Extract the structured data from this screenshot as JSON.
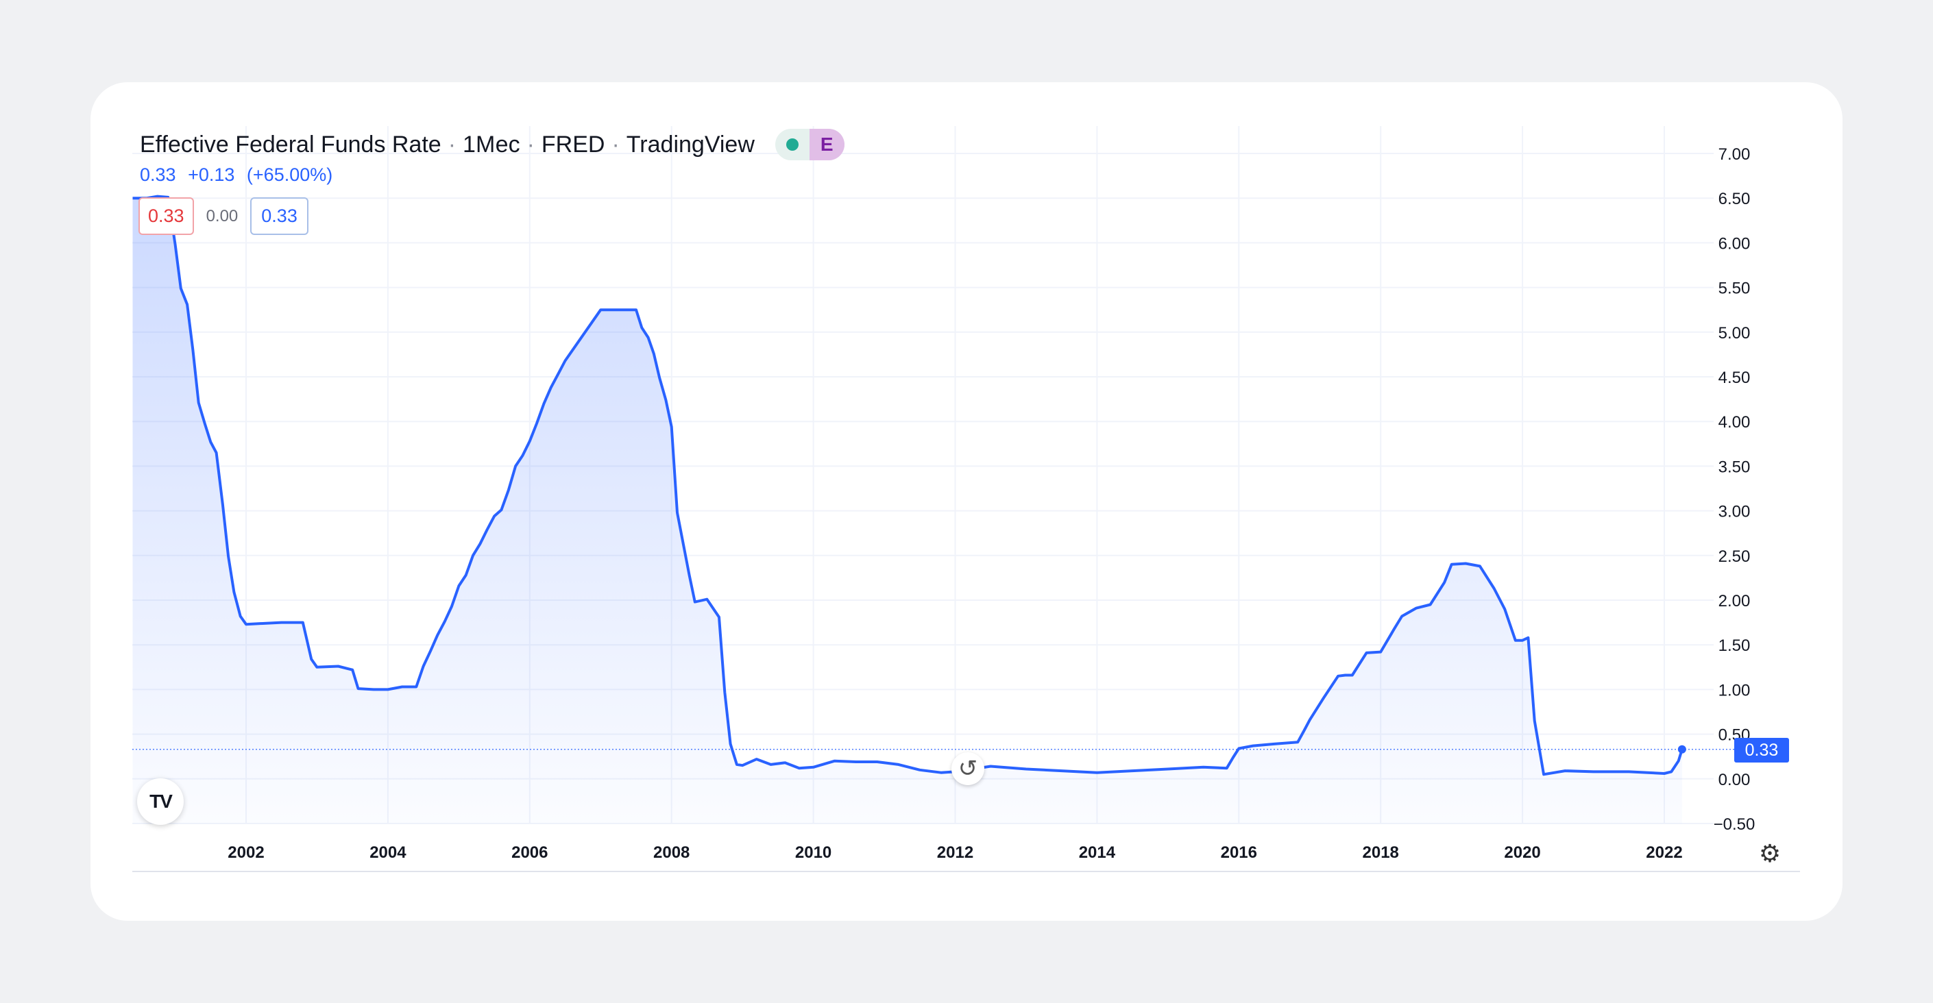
{
  "header": {
    "symbol": "Effective Federal Funds Rate",
    "interval": "1Мес",
    "source": "FRED",
    "platform": "TradingView",
    "badge_e": "E",
    "status_color": "#22ab94"
  },
  "change": {
    "last": "0.33",
    "abs": "+0.13",
    "pct": "(+65.00%)"
  },
  "ohlc": {
    "sell": "0.33",
    "spread": "0.00",
    "buy": "0.33"
  },
  "price_tag": "0.33",
  "logo": "TV",
  "chart_data": {
    "type": "area",
    "title": "Effective Federal Funds Rate",
    "xlabel": "",
    "ylabel": "",
    "ylim": [
      -0.5,
      7.0
    ],
    "grid": true,
    "line_color": "#2962ff",
    "last_value": 0.33,
    "x_ticks": [
      "2002",
      "2004",
      "2006",
      "2008",
      "2010",
      "2012",
      "2014",
      "2016",
      "2018",
      "2020",
      "2022"
    ],
    "y_ticks": [
      "7.00",
      "6.50",
      "6.00",
      "5.50",
      "5.00",
      "4.50",
      "4.00",
      "3.50",
      "3.00",
      "2.50",
      "2.00",
      "1.50",
      "1.00",
      "0.50",
      "0.00",
      "−0.50"
    ],
    "y_tick_values": [
      7.0,
      6.5,
      6.0,
      5.5,
      5.0,
      4.5,
      4.0,
      3.5,
      3.0,
      2.5,
      2.0,
      1.5,
      1.0,
      0.5,
      0.0,
      -0.5
    ],
    "series": [
      {
        "name": "Effective Federal Funds Rate",
        "x": [
          2000.4,
          2000.6,
          2000.75,
          2000.9,
          2001.0,
          2001.08,
          2001.17,
          2001.25,
          2001.33,
          2001.42,
          2001.5,
          2001.58,
          2001.67,
          2001.75,
          2001.83,
          2001.92,
          2002.0,
          2002.5,
          2002.8,
          2002.92,
          2003.0,
          2003.3,
          2003.5,
          2003.58,
          2003.8,
          2004.0,
          2004.2,
          2004.4,
          2004.5,
          2004.6,
          2004.7,
          2004.8,
          2004.9,
          2005.0,
          2005.1,
          2005.2,
          2005.3,
          2005.4,
          2005.5,
          2005.6,
          2005.7,
          2005.8,
          2005.9,
          2006.0,
          2006.1,
          2006.2,
          2006.3,
          2006.4,
          2006.5,
          2007.0,
          2007.5,
          2007.58,
          2007.67,
          2007.75,
          2007.83,
          2007.92,
          2008.0,
          2008.08,
          2008.17,
          2008.25,
          2008.33,
          2008.5,
          2008.67,
          2008.75,
          2008.83,
          2008.92,
          2009.0,
          2009.2,
          2009.4,
          2009.6,
          2009.8,
          2010.0,
          2010.3,
          2010.6,
          2010.9,
          2011.2,
          2011.5,
          2011.8,
          2012.0,
          2012.5,
          2013.0,
          2013.5,
          2014.0,
          2014.5,
          2015.0,
          2015.5,
          2015.83,
          2015.92,
          2016.0,
          2016.2,
          2016.5,
          2016.83,
          2016.92,
          2017.0,
          2017.2,
          2017.4,
          2017.5,
          2017.6,
          2017.8,
          2018.0,
          2018.2,
          2018.3,
          2018.5,
          2018.7,
          2018.9,
          2019.0,
          2019.2,
          2019.4,
          2019.6,
          2019.75,
          2019.9,
          2020.0,
          2020.08,
          2020.17,
          2020.3,
          2020.6,
          2021.0,
          2021.5,
          2022.0,
          2022.1,
          2022.2,
          2022.25
        ],
        "values": [
          6.5,
          6.5,
          6.52,
          6.51,
          5.98,
          5.49,
          5.31,
          4.8,
          4.21,
          3.97,
          3.77,
          3.65,
          3.07,
          2.49,
          2.09,
          1.82,
          1.73,
          1.75,
          1.75,
          1.34,
          1.25,
          1.26,
          1.22,
          1.01,
          1.0,
          1.0,
          1.03,
          1.03,
          1.26,
          1.43,
          1.61,
          1.76,
          1.93,
          2.16,
          2.28,
          2.5,
          2.63,
          2.79,
          2.94,
          3.01,
          3.23,
          3.5,
          3.62,
          3.78,
          3.98,
          4.2,
          4.38,
          4.53,
          4.68,
          5.25,
          5.25,
          5.05,
          4.94,
          4.76,
          4.49,
          4.24,
          3.94,
          2.98,
          2.61,
          2.28,
          1.98,
          2.01,
          1.81,
          0.97,
          0.39,
          0.16,
          0.15,
          0.22,
          0.16,
          0.18,
          0.12,
          0.13,
          0.2,
          0.19,
          0.19,
          0.16,
          0.1,
          0.07,
          0.08,
          0.14,
          0.11,
          0.09,
          0.07,
          0.09,
          0.11,
          0.13,
          0.12,
          0.24,
          0.34,
          0.37,
          0.39,
          0.41,
          0.54,
          0.66,
          0.91,
          1.15,
          1.16,
          1.16,
          1.41,
          1.42,
          1.69,
          1.82,
          1.91,
          1.95,
          2.2,
          2.4,
          2.41,
          2.38,
          2.13,
          1.9,
          1.55,
          1.55,
          1.58,
          0.65,
          0.05,
          0.09,
          0.08,
          0.08,
          0.06,
          0.08,
          0.2,
          0.33
        ]
      }
    ]
  }
}
